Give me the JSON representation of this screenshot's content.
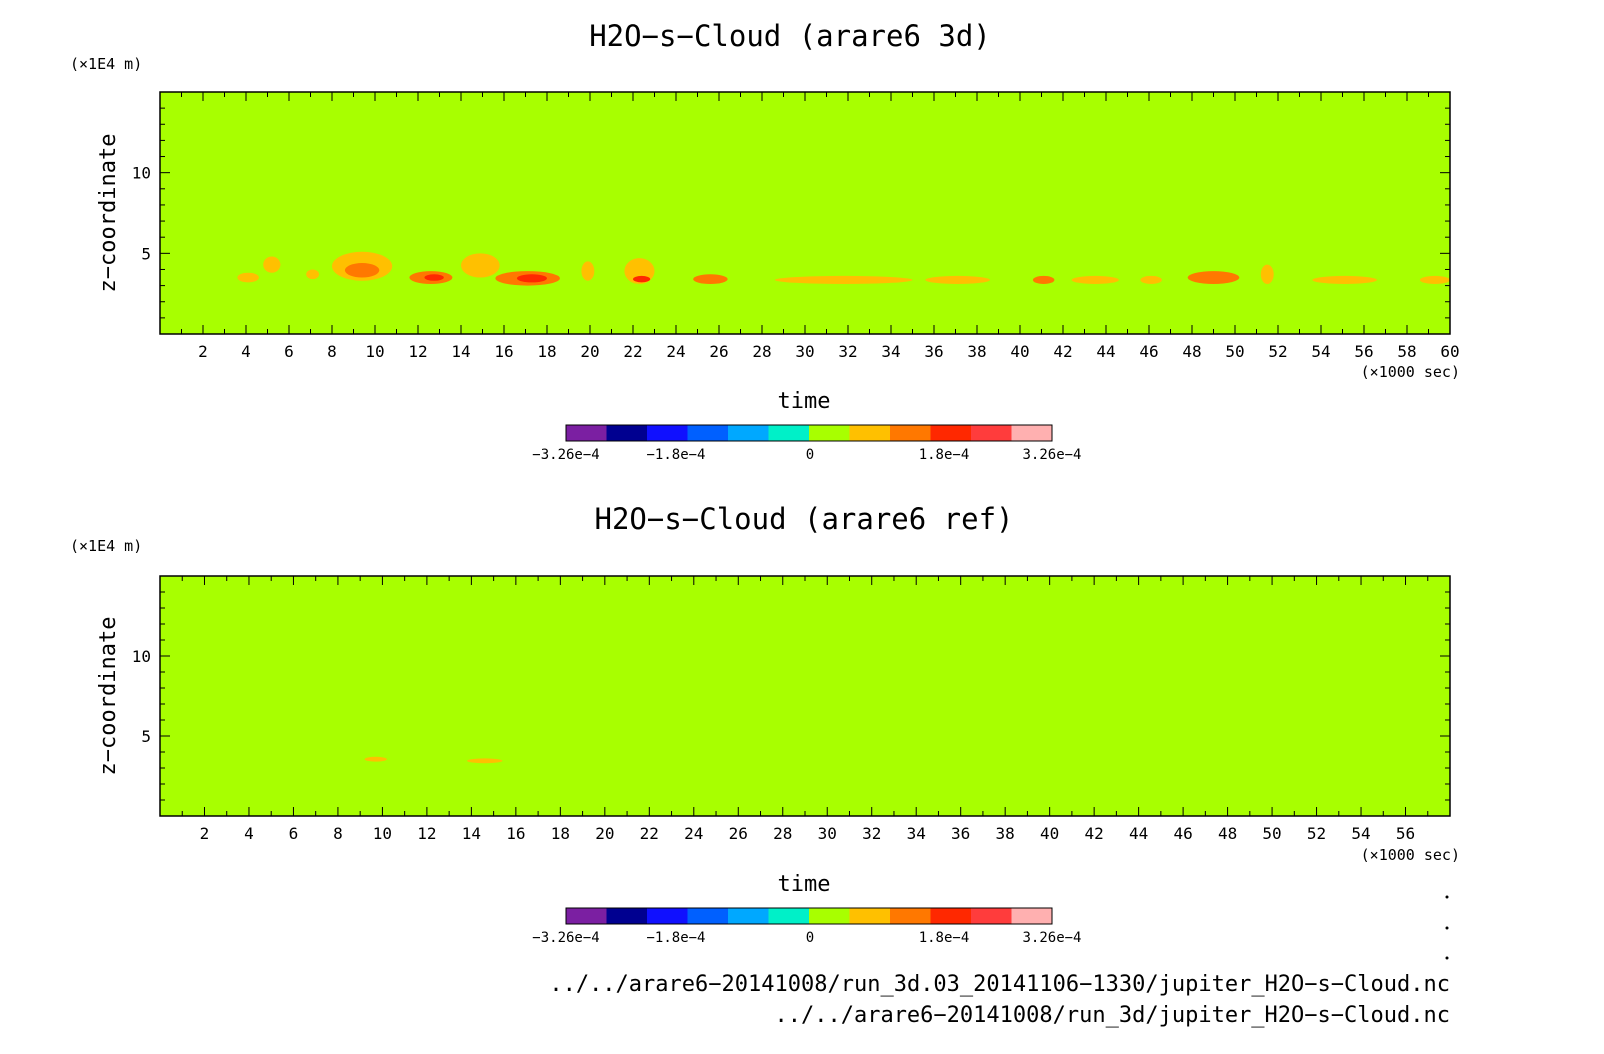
{
  "chart_data": [
    {
      "type": "heatmap",
      "title": "H2O−s−Cloud (arare6 3d)",
      "xlabel": "time",
      "ylabel": "z−coordinate",
      "x_unit": "(×1000 sec)",
      "y_unit": "(×1E4 m)",
      "xlim": [
        0,
        60
      ],
      "ylim": [
        0,
        15
      ],
      "x_ticks": [
        "2",
        "4",
        "6",
        "8",
        "10",
        "12",
        "14",
        "16",
        "18",
        "20",
        "22",
        "24",
        "26",
        "28",
        "30",
        "32",
        "34",
        "36",
        "38",
        "40",
        "42",
        "44",
        "46",
        "48",
        "50",
        "52",
        "54",
        "56",
        "58",
        "60"
      ],
      "y_ticks": [
        "5",
        "10"
      ],
      "background_value": 0,
      "features": [
        {
          "x": [
            3.6,
            4.6
          ],
          "z": [
            3.2,
            3.8
          ],
          "level": 1
        },
        {
          "x": [
            4.8,
            5.6
          ],
          "z": [
            3.8,
            4.8
          ],
          "level": 1
        },
        {
          "x": [
            6.8,
            7.4
          ],
          "z": [
            3.4,
            4.0
          ],
          "level": 1
        },
        {
          "x": [
            8.0,
            10.8
          ],
          "z": [
            3.3,
            5.1
          ],
          "level": 1
        },
        {
          "x": [
            8.6,
            10.2
          ],
          "z": [
            3.5,
            4.4
          ],
          "level": 2
        },
        {
          "x": [
            11.6,
            13.6
          ],
          "z": [
            3.1,
            3.9
          ],
          "level": 2
        },
        {
          "x": [
            12.3,
            13.2
          ],
          "z": [
            3.3,
            3.7
          ],
          "level": 3
        },
        {
          "x": [
            14.0,
            15.8
          ],
          "z": [
            3.5,
            5.0
          ],
          "level": 1
        },
        {
          "x": [
            15.6,
            18.6
          ],
          "z": [
            3.0,
            3.9
          ],
          "level": 2
        },
        {
          "x": [
            16.6,
            18.0
          ],
          "z": [
            3.2,
            3.7
          ],
          "level": 3
        },
        {
          "x": [
            19.6,
            20.2
          ],
          "z": [
            3.3,
            4.5
          ],
          "level": 1
        },
        {
          "x": [
            21.6,
            23.0
          ],
          "z": [
            3.1,
            4.7
          ],
          "level": 1
        },
        {
          "x": [
            22.0,
            22.8
          ],
          "z": [
            3.2,
            3.6
          ],
          "level": 3
        },
        {
          "x": [
            24.8,
            26.4
          ],
          "z": [
            3.1,
            3.7
          ],
          "level": 2
        },
        {
          "x": [
            28.6,
            35.0
          ],
          "z": [
            3.1,
            3.6
          ],
          "level": 1
        },
        {
          "x": [
            35.6,
            38.6
          ],
          "z": [
            3.1,
            3.6
          ],
          "level": 1
        },
        {
          "x": [
            40.6,
            41.6
          ],
          "z": [
            3.1,
            3.6
          ],
          "level": 2
        },
        {
          "x": [
            42.4,
            44.6
          ],
          "z": [
            3.1,
            3.6
          ],
          "level": 1
        },
        {
          "x": [
            45.6,
            46.6
          ],
          "z": [
            3.1,
            3.6
          ],
          "level": 1
        },
        {
          "x": [
            47.8,
            50.2
          ],
          "z": [
            3.1,
            3.9
          ],
          "level": 2
        },
        {
          "x": [
            51.2,
            51.8
          ],
          "z": [
            3.1,
            4.3
          ],
          "level": 1
        },
        {
          "x": [
            53.6,
            56.6
          ],
          "z": [
            3.1,
            3.6
          ],
          "level": 1
        },
        {
          "x": [
            58.6,
            60.0
          ],
          "z": [
            3.1,
            3.6
          ],
          "level": 1
        }
      ]
    },
    {
      "type": "heatmap",
      "title": "H2O−s−Cloud (arare6 ref)",
      "xlabel": "time",
      "ylabel": "z−coordinate",
      "x_unit": "(×1000 sec)",
      "y_unit": "(×1E4 m)",
      "xlim": [
        0,
        58
      ],
      "ylim": [
        0,
        15
      ],
      "x_ticks": [
        "2",
        "4",
        "6",
        "8",
        "10",
        "12",
        "14",
        "16",
        "18",
        "20",
        "22",
        "24",
        "26",
        "28",
        "30",
        "32",
        "34",
        "36",
        "38",
        "40",
        "42",
        "44",
        "46",
        "48",
        "50",
        "52",
        "54",
        "56"
      ],
      "y_ticks": [
        "5",
        "10"
      ],
      "background_value": 0,
      "features": [
        {
          "x": [
            9.2,
            10.2
          ],
          "z": [
            3.4,
            3.7
          ],
          "level": 1
        },
        {
          "x": [
            13.8,
            15.4
          ],
          "z": [
            3.3,
            3.6
          ],
          "level": 1
        }
      ]
    }
  ],
  "colorbar": {
    "min": -0.000326,
    "max": 0.000326,
    "colors": [
      "#7b1fa2",
      "#000090",
      "#1010ff",
      "#0060ff",
      "#00a8ff",
      "#00f0c8",
      "#a8ff00",
      "#ffc000",
      "#ff7800",
      "#ff2800",
      "#ff3c3c",
      "#ffb0b0"
    ],
    "labels": [
      "−3.26e−4",
      "−1.8e−4",
      "0",
      "1.8e−4",
      "3.26e−4"
    ]
  },
  "files": [
    "../../arare6−20141008/run_3d.03_20141106−1330/jupiter_H2O−s−Cloud.nc",
    "../../arare6−20141008/run_3d/jupiter_H2O−s−Cloud.nc"
  ]
}
